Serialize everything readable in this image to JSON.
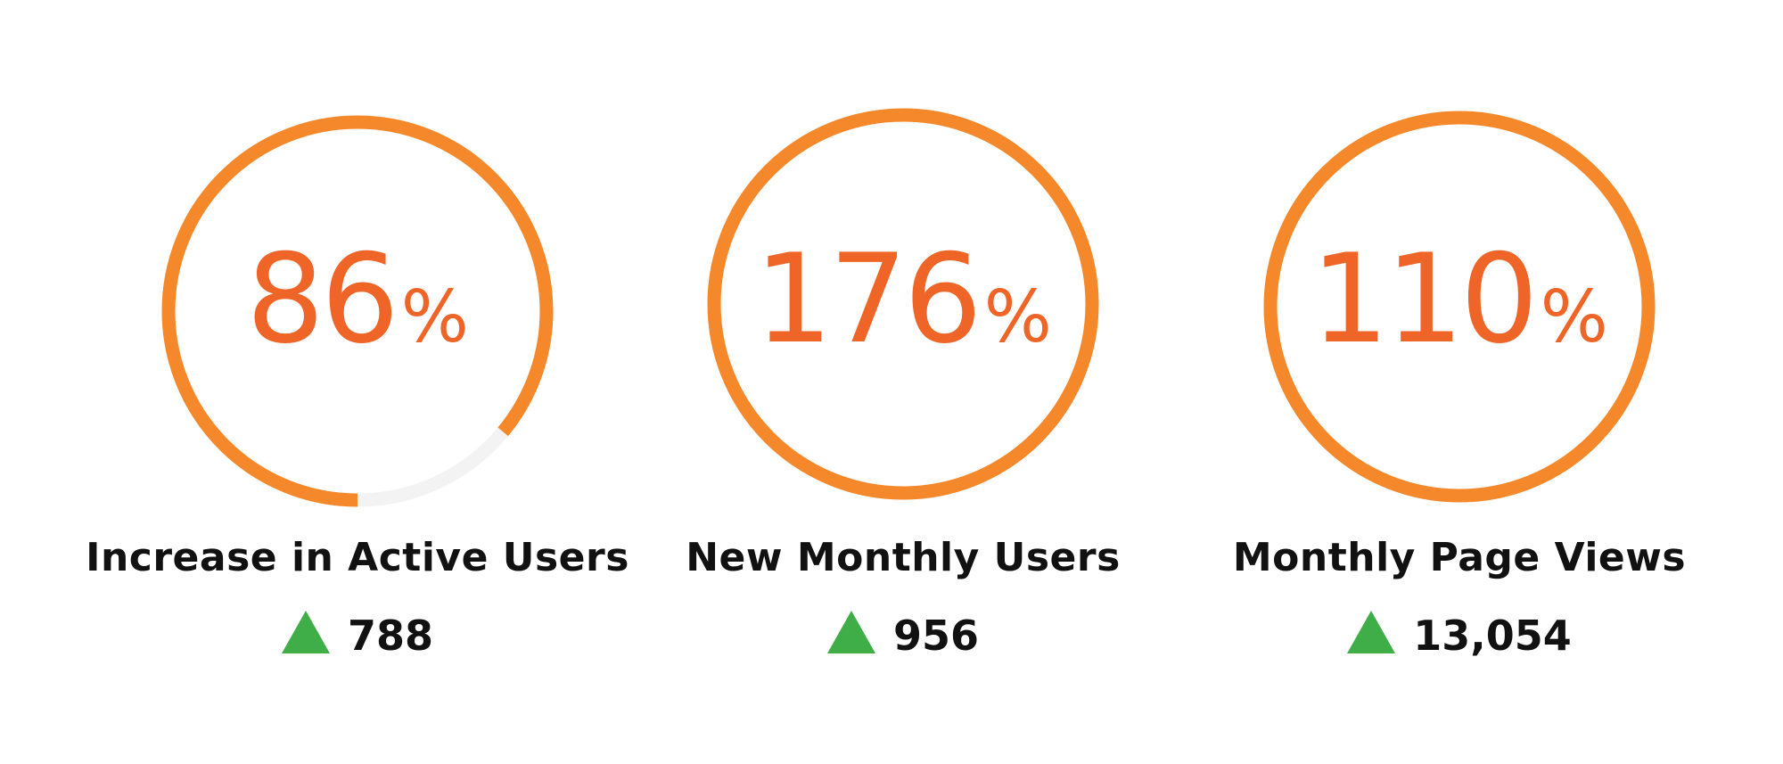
{
  "colors": {
    "ring": "#F5882A",
    "track": "#F3F3F3",
    "value_text": "#EF6527",
    "up": "#3FAE49"
  },
  "kpis": [
    {
      "percent": "86",
      "percent_symbol": "%",
      "fill_fraction": 0.86,
      "label": "Increase in Active Users",
      "trend_icon": "triangle-up-icon",
      "delta": "788"
    },
    {
      "percent": "176",
      "percent_symbol": "%",
      "fill_fraction": 1.0,
      "label": "New Monthly Users",
      "trend_icon": "triangle-up-icon",
      "delta": "956"
    },
    {
      "percent": "110",
      "percent_symbol": "%",
      "fill_fraction": 1.0,
      "label": "Monthly Page Views",
      "trend_icon": "triangle-up-icon",
      "delta": "13,054"
    }
  ]
}
